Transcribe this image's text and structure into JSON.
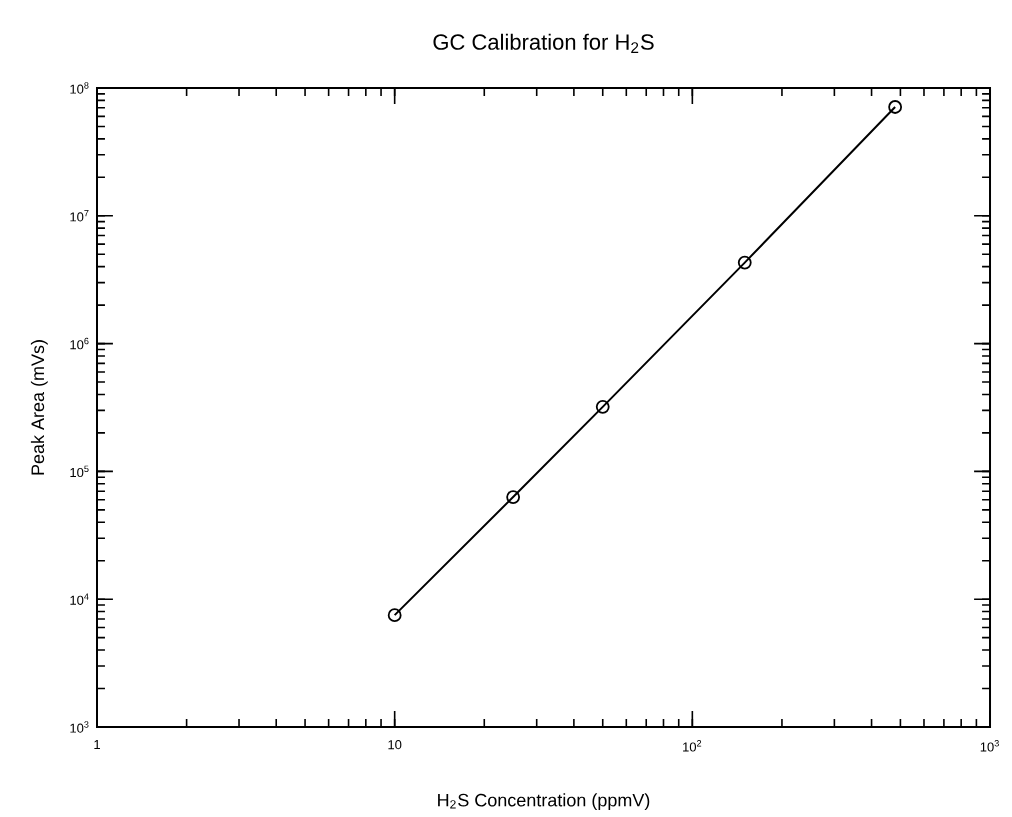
{
  "chart_data": {
    "type": "line",
    "title": "GC Calibration for H$_{2}$S",
    "xlabel": "H$_{2}$S Concentration (ppmV)",
    "ylabel": "Peak Area (mVs)",
    "log": "xy",
    "grid": false,
    "marker": "circle",
    "line_style": "solid",
    "xlim": [
      1,
      1000
    ],
    "ylim": [
      1000,
      100000000
    ],
    "xticks": [
      1,
      10,
      {
        "value": 100,
        "label": "10$^{2}$"
      },
      {
        "value": 1000,
        "label": "10$^{3}$"
      }
    ],
    "yticks": [
      {
        "value": 1000,
        "label": "10$^{3}$"
      },
      {
        "value": 10000,
        "label": "10$^{4}$"
      },
      {
        "value": 100000,
        "label": "10$^{5}$"
      },
      {
        "value": 1000000,
        "label": "10$^{6}$"
      },
      {
        "value": 10000000,
        "label": "10$^{7}$"
      },
      {
        "value": 100000000,
        "label": "10$^{8}$"
      }
    ],
    "x": [
      10,
      25,
      50,
      150,
      480
    ],
    "series": [
      {
        "color": "#000000",
        "values": [
          7500,
          63000,
          320000,
          4300000,
          71000000
        ]
      }
    ]
  }
}
